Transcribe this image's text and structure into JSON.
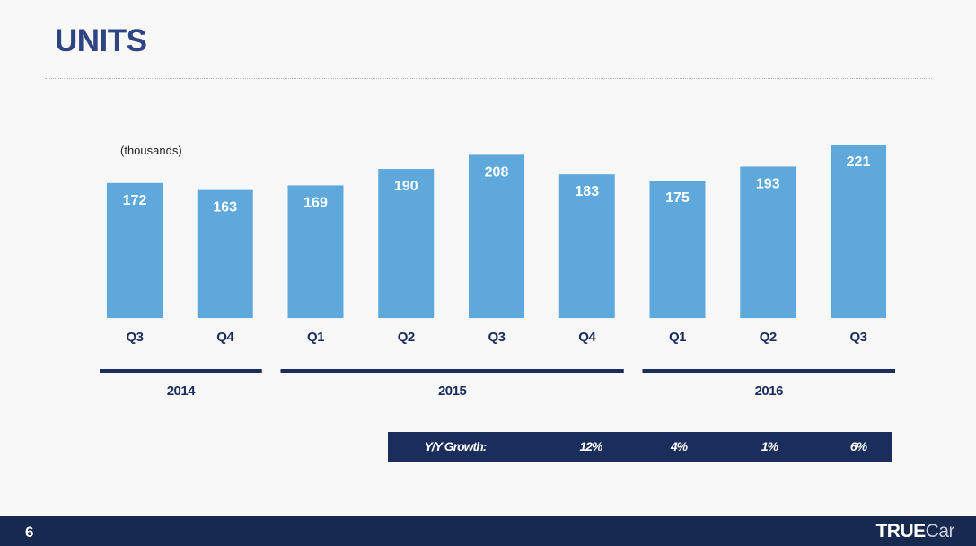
{
  "title": "UNITS",
  "page_number": "6",
  "logo": {
    "bold": "TRUE",
    "light": "Car"
  },
  "chart_data": {
    "type": "bar",
    "unit_label": "(thousands)",
    "categories": [
      "Q3",
      "Q4",
      "Q1",
      "Q2",
      "Q3",
      "Q4",
      "Q1",
      "Q2",
      "Q3"
    ],
    "years": [
      {
        "label": "2014",
        "span": [
          0,
          1
        ]
      },
      {
        "label": "2015",
        "span": [
          2,
          5
        ]
      },
      {
        "label": "2016",
        "span": [
          6,
          8
        ]
      }
    ],
    "values": [
      172,
      163,
      169,
      190,
      208,
      183,
      175,
      193,
      221
    ],
    "ylim": [
      0,
      221
    ],
    "bar_color": "#5ea8dc",
    "axis_color": "#1b2d5c"
  },
  "yoy": {
    "label": "Y/Y Growth:",
    "values": [
      "12%",
      "4%",
      "1%",
      "6%"
    ]
  }
}
